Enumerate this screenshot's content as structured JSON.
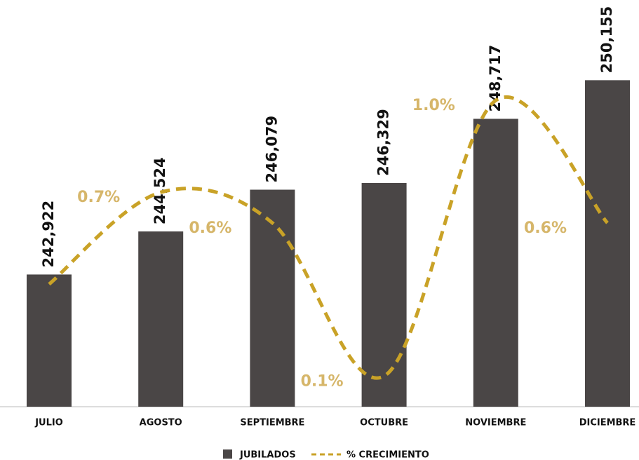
{
  "chart_data": {
    "type": "bar-line",
    "categories": [
      "JULIO",
      "AGOSTO",
      "SEPTIEMBRE",
      "OCTUBRE",
      "NOVIEMBRE",
      "DICIEMBRE"
    ],
    "series": [
      {
        "name": "JUBILADOS",
        "type": "bar",
        "color": "#4a4646",
        "values": [
          242922,
          244524,
          246079,
          246329,
          248717,
          250155
        ],
        "value_labels": [
          "242,922",
          "244,524",
          "246,079",
          "246,329",
          "248,717",
          "250,155"
        ]
      },
      {
        "name": "% CRECIMIENTO",
        "type": "line",
        "axis": "y2",
        "color": "#c9a227",
        "label_color": "#d6b66a",
        "values": [
          0.4,
          0.7,
          0.6,
          0.1,
          1.0,
          0.6
        ],
        "value_labels": [
          null,
          "0.7%",
          "0.6%",
          "0.1%",
          "1.0%",
          "0.6%"
        ]
      }
    ],
    "ylim": [
      238000,
      251000
    ],
    "y2lim": [
      0,
      1.14
    ],
    "legend": "bottom"
  }
}
